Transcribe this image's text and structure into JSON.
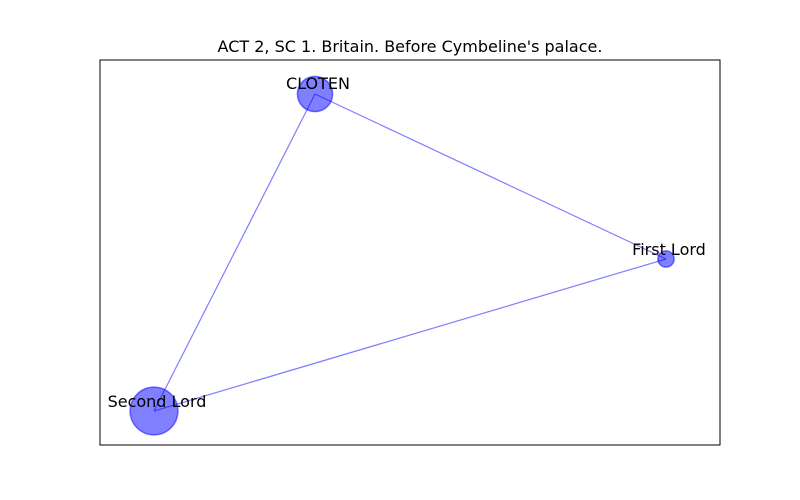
{
  "figure": {
    "title": "ACT 2, SC 1. Britain. Before Cymbeline's palace."
  },
  "graph": {
    "node_color": "#0000ff",
    "node_alpha": 0.5,
    "edge_color": "#0000ff",
    "edge_alpha": 0.5,
    "nodes": [
      {
        "id": "CLOTEN",
        "label": "CLOTEN",
        "weight": 2
      },
      {
        "id": "First Lord",
        "label": "First Lord",
        "weight": 0.5
      },
      {
        "id": "Second Lord",
        "label": "Second Lord",
        "weight": 3
      }
    ],
    "edges": [
      {
        "source": "CLOTEN",
        "target": "First Lord"
      },
      {
        "source": "CLOTEN",
        "target": "Second Lord"
      },
      {
        "source": "First Lord",
        "target": "Second Lord"
      }
    ]
  }
}
